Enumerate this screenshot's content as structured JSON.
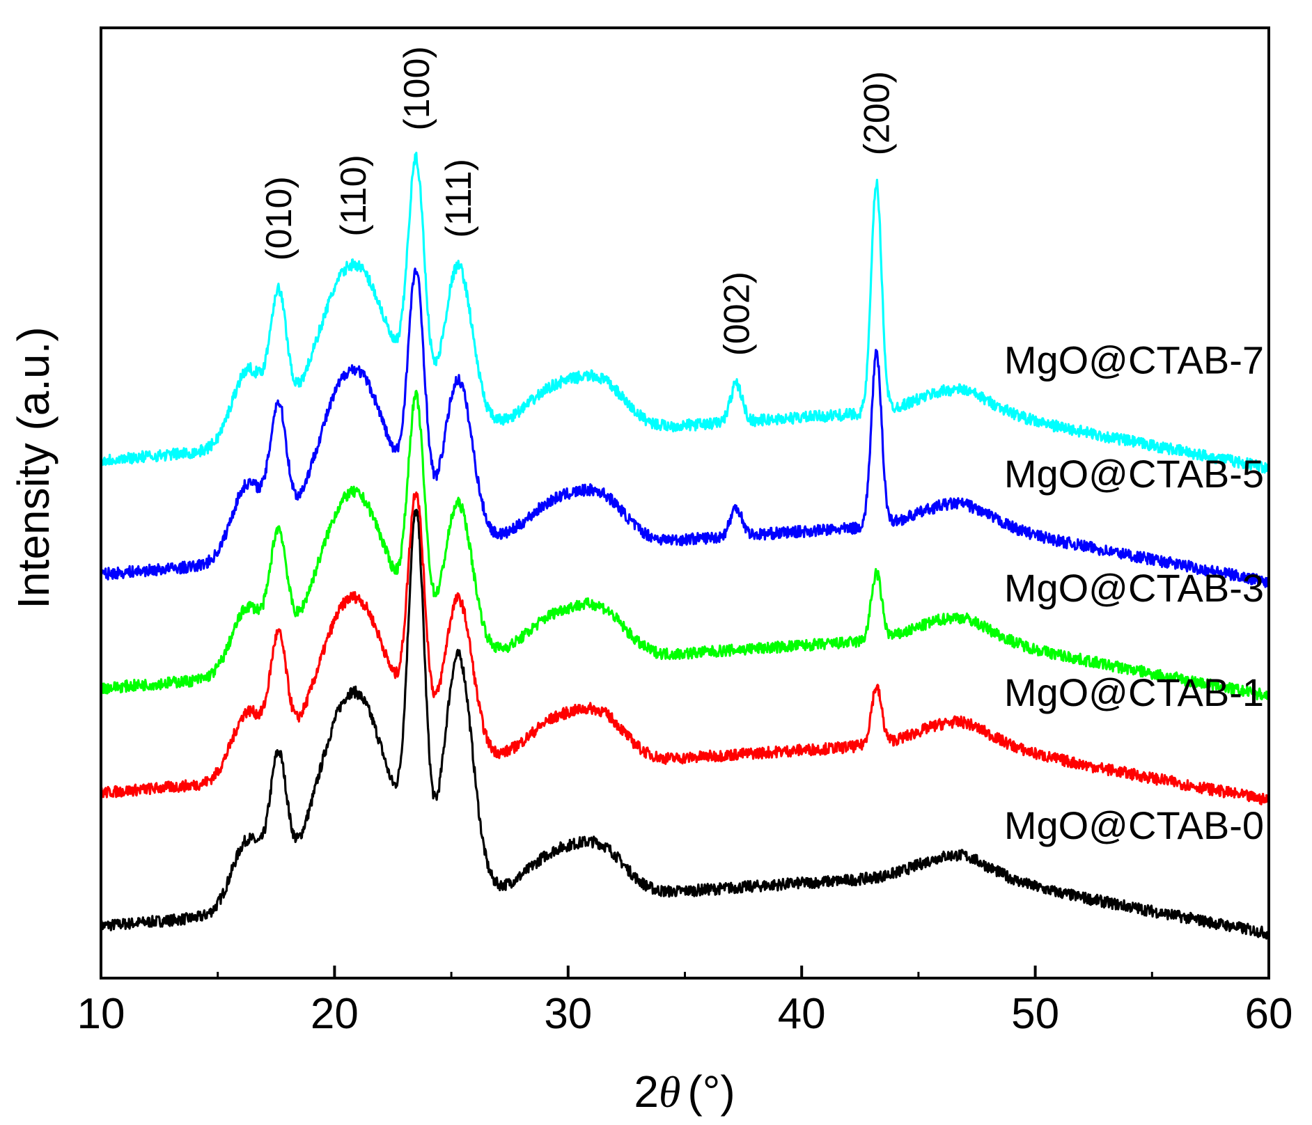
{
  "chart_data": {
    "type": "line",
    "xlabel_prefix": "2",
    "xlabel_var": "θ",
    "xlabel_unit": "(°)",
    "ylabel": "Intensity (a.u.)",
    "xlim": [
      10,
      60
    ],
    "ylim": [
      0,
      100
    ],
    "x_ticks": [
      "10",
      "20",
      "30",
      "40",
      "50",
      "60"
    ],
    "series": [
      {
        "name": "MgO@CTAB-0",
        "color": "#000000",
        "offset": 0,
        "baseline": [
          [
            10,
            5.5
          ],
          [
            15,
            6.5
          ],
          [
            20,
            8
          ],
          [
            27,
            9
          ],
          [
            34,
            9
          ],
          [
            40,
            10
          ],
          [
            47,
            11
          ],
          [
            53,
            8
          ],
          [
            60,
            4.7
          ]
        ],
        "peaks": [
          [
            16.3,
            7.5,
            0.7
          ],
          [
            17.6,
            13,
            0.35
          ],
          [
            20.8,
            22,
            1.5
          ],
          [
            23.5,
            36,
            0.35
          ],
          [
            25.3,
            25,
            0.6
          ],
          [
            29.5,
            4,
            1.2
          ],
          [
            31.5,
            4,
            1.0
          ],
          [
            46.5,
            2,
            1.5
          ]
        ]
      },
      {
        "name": "MgO@CTAB-1",
        "color": "#ff0000",
        "offset": 14,
        "baseline": [
          [
            10,
            5.5
          ],
          [
            15,
            6.5
          ],
          [
            20,
            8
          ],
          [
            27,
            9
          ],
          [
            34,
            9
          ],
          [
            40,
            10
          ],
          [
            47,
            11
          ],
          [
            53,
            8
          ],
          [
            60,
            4.7
          ]
        ],
        "peaks": [
          [
            16.3,
            7,
            0.7
          ],
          [
            17.6,
            12,
            0.35
          ],
          [
            20.8,
            18,
            1.5
          ],
          [
            23.5,
            25,
            0.35
          ],
          [
            25.3,
            17,
            0.6
          ],
          [
            29.5,
            4,
            1.2
          ],
          [
            31.5,
            4,
            1.0
          ],
          [
            43.2,
            6,
            0.22
          ],
          [
            46.5,
            2,
            1.5
          ]
        ]
      },
      {
        "name": "MgO@CTAB-3",
        "color": "#00ff00",
        "offset": 25,
        "baseline": [
          [
            10,
            5.5
          ],
          [
            15,
            6.5
          ],
          [
            20,
            8
          ],
          [
            27,
            9
          ],
          [
            34,
            9
          ],
          [
            40,
            10
          ],
          [
            47,
            11
          ],
          [
            53,
            8
          ],
          [
            60,
            4.7
          ]
        ],
        "peaks": [
          [
            16.3,
            7,
            0.7
          ],
          [
            17.6,
            12,
            0.35
          ],
          [
            20.8,
            18,
            1.5
          ],
          [
            23.5,
            24,
            0.35
          ],
          [
            25.3,
            16,
            0.6
          ],
          [
            29.5,
            4,
            1.2
          ],
          [
            31.5,
            4,
            1.0
          ],
          [
            43.2,
            7,
            0.22
          ],
          [
            46.5,
            2,
            1.5
          ]
        ]
      },
      {
        "name": "MgO@CTAB-5",
        "color": "#0000ff",
        "offset": 37,
        "baseline": [
          [
            10,
            5.5
          ],
          [
            15,
            6.5
          ],
          [
            20,
            8
          ],
          [
            27,
            9
          ],
          [
            34,
            9
          ],
          [
            40,
            10
          ],
          [
            47,
            11
          ],
          [
            53,
            8
          ],
          [
            60,
            4.7
          ]
        ],
        "peaks": [
          [
            16.3,
            8,
            0.7
          ],
          [
            17.6,
            13,
            0.35
          ],
          [
            20.8,
            19,
            1.5
          ],
          [
            23.5,
            25,
            0.35
          ],
          [
            25.3,
            17,
            0.6
          ],
          [
            29.5,
            4,
            1.2
          ],
          [
            31.5,
            4,
            1.0
          ],
          [
            37.2,
            3,
            0.25
          ],
          [
            43.2,
            18,
            0.22
          ],
          [
            46.5,
            2,
            1.5
          ]
        ]
      },
      {
        "name": "MgO@CTAB-7",
        "color": "#00ffff",
        "offset": 49,
        "baseline": [
          [
            10,
            5.5
          ],
          [
            15,
            6.5
          ],
          [
            20,
            8
          ],
          [
            27,
            9
          ],
          [
            34,
            9
          ],
          [
            40,
            10
          ],
          [
            47,
            11
          ],
          [
            53,
            8
          ],
          [
            60,
            4.7
          ]
        ],
        "peaks": [
          [
            16.3,
            8,
            0.7
          ],
          [
            17.6,
            13,
            0.35
          ],
          [
            20.8,
            18,
            1.5
          ],
          [
            23.5,
            25,
            0.35
          ],
          [
            25.3,
            17,
            0.6
          ],
          [
            29.5,
            4,
            1.2
          ],
          [
            31.5,
            4,
            1.0
          ],
          [
            37.2,
            4,
            0.25
          ],
          [
            43.2,
            24,
            0.22
          ],
          [
            46.5,
            2,
            1.5
          ]
        ]
      }
    ],
    "peak_annotations": [
      {
        "label": "(010)",
        "x": 17.6
      },
      {
        "label": "(110)",
        "x": 20.8
      },
      {
        "label": "(100)",
        "x": 23.5
      },
      {
        "label": "(111)",
        "x": 25.3
      },
      {
        "label": "(002)",
        "x": 37.2
      },
      {
        "label": "(200)",
        "x": 43.2
      }
    ]
  }
}
